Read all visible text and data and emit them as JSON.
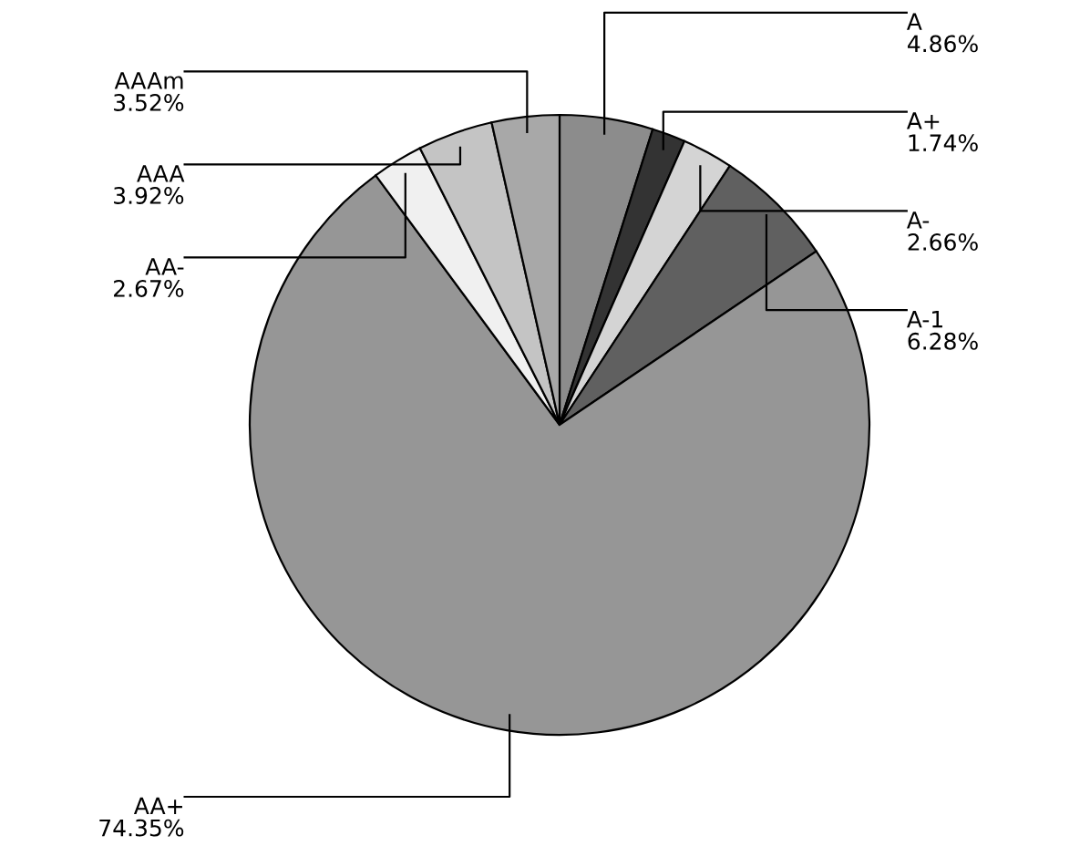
{
  "chart_data": {
    "type": "pie",
    "categories": [
      "A",
      "A+",
      "A-",
      "A-1",
      "AA+",
      "AA-",
      "AAA",
      "AAAm"
    ],
    "values": [
      4.86,
      1.74,
      2.66,
      6.28,
      74.35,
      2.67,
      3.92,
      3.52
    ],
    "colors": [
      "#8c8c8c",
      "#333333",
      "#d4d4d4",
      "#606060",
      "#969696",
      "#f0f0f0",
      "#c4c4c4",
      "#a8a8a8"
    ],
    "value_labels": [
      "4.86%",
      "1.74%",
      "2.66%",
      "6.28%",
      "74.35%",
      "2.67%",
      "3.92%",
      "3.52%"
    ],
    "legend": false
  }
}
